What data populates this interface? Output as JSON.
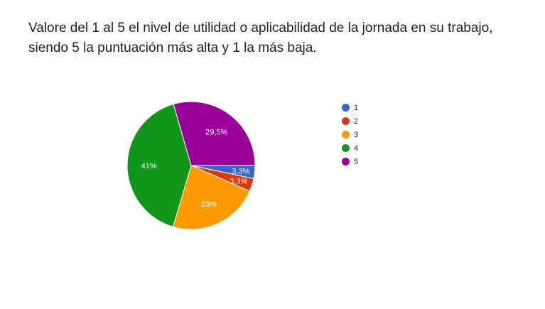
{
  "question": {
    "title": "Valore del 1 al 5 el nivel de utilidad o aplicabilidad de la jornada en su trabajo, siendo 5 la puntuación más alta y 1 la más baja."
  },
  "chart_data": {
    "type": "pie",
    "title": "",
    "legend_position": "right",
    "slices": [
      {
        "label": "1",
        "value": 3.3,
        "value_label": "3,3%",
        "color": "#3366cc"
      },
      {
        "label": "2",
        "value": 3.3,
        "value_label": "3,3%",
        "color": "#dc3912"
      },
      {
        "label": "3",
        "value": 23,
        "value_label": "23%",
        "color": "#ff9900"
      },
      {
        "label": "4",
        "value": 41,
        "value_label": "41%",
        "color": "#109618"
      },
      {
        "label": "5",
        "value": 29.5,
        "value_label": "29,5%",
        "color": "#990099"
      }
    ]
  }
}
